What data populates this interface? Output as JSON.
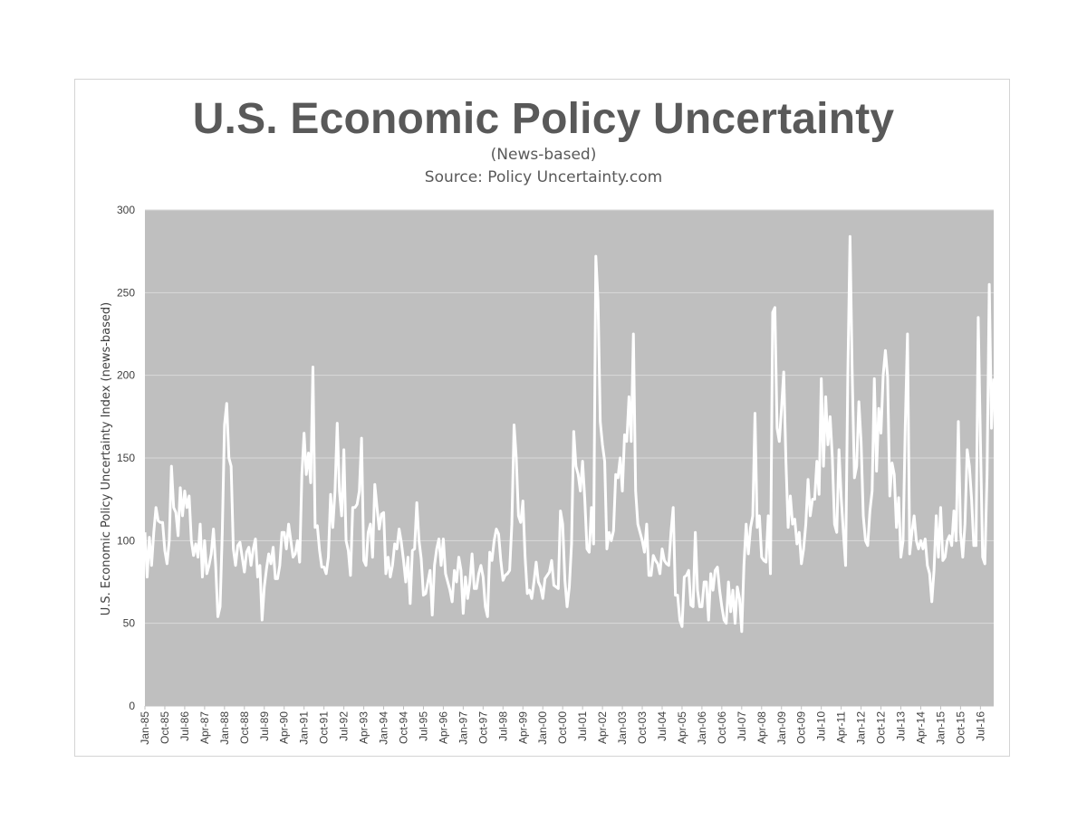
{
  "chart_data": {
    "type": "line",
    "title": "U.S. Economic Policy Uncertainty",
    "subtitle": "(News-based)",
    "source": "Source: Policy Uncertainty.com",
    "ylabel": "U.S. Economic Policy Uncertainty  Index (news-based)",
    "xlabel": "",
    "ylim": [
      0,
      300
    ],
    "y_ticks": [
      0,
      50,
      100,
      150,
      200,
      250,
      300
    ],
    "x_start": "1985-01",
    "grid": true,
    "legend": "none",
    "colors": {
      "plot_bg": "#bfbfbf",
      "line": "#ffffff",
      "grid": "#d9d9d9"
    },
    "x_tick_labels": [
      "Jan-85",
      "Oct-85",
      "Jul-86",
      "Apr-87",
      "Jan-88",
      "Oct-88",
      "Jul-89",
      "Apr-90",
      "Jan-91",
      "Oct-91",
      "Jul-92",
      "Apr-93",
      "Jan-94",
      "Oct-94",
      "Jul-95",
      "Apr-96",
      "Jan-97",
      "Oct-97",
      "Jul-98",
      "Apr-99",
      "Jan-00",
      "Oct-00",
      "Jul-01",
      "Apr-02",
      "Jan-03",
      "Oct-03",
      "Jul-04",
      "Apr-05",
      "Jan-06",
      "Oct-06",
      "Jul-07",
      "Apr-08",
      "Jan-09",
      "Oct-09",
      "Jul-10",
      "Apr-11",
      "Jan-12",
      "Oct-12",
      "Jul-13",
      "Apr-14",
      "Jan-15",
      "Oct-15",
      "Jul-16"
    ],
    "series": [
      {
        "values": [
          105,
          78,
          102,
          85,
          105,
          120,
          112,
          111,
          111,
          94,
          86,
          100,
          145,
          120,
          117,
          103,
          132,
          115,
          130,
          120,
          127,
          100,
          91,
          98,
          90,
          110,
          78,
          100,
          80,
          85,
          92,
          107,
          85,
          54,
          60,
          105,
          170,
          183,
          150,
          145,
          95,
          85,
          97,
          99,
          90,
          81,
          93,
          96,
          85,
          95,
          101,
          78,
          85,
          52,
          72,
          83,
          92,
          86,
          96,
          77,
          77,
          85,
          105,
          105,
          95,
          110,
          100,
          90,
          92,
          100,
          87,
          140,
          165,
          140,
          153,
          135,
          205,
          108,
          109,
          94,
          84,
          84,
          80,
          90,
          128,
          108,
          130,
          171,
          130,
          115,
          155,
          100,
          94,
          79,
          120,
          120,
          122,
          130,
          162,
          88,
          85,
          105,
          110,
          90,
          134,
          120,
          107,
          116,
          117,
          80,
          90,
          78,
          85,
          98,
          95,
          107,
          99,
          88,
          75,
          90,
          62,
          94,
          95,
          123,
          100,
          89,
          67,
          68,
          75,
          82,
          55,
          85,
          95,
          101,
          85,
          101,
          80,
          75,
          70,
          63,
          82,
          75,
          90,
          82,
          56,
          78,
          65,
          75,
          92,
          71,
          71,
          80,
          85,
          78,
          60,
          54,
          93,
          88,
          100,
          107,
          104,
          88,
          76,
          79,
          80,
          82,
          110,
          170,
          150,
          115,
          111,
          124,
          90,
          68,
          70,
          65,
          75,
          87,
          75,
          72,
          65,
          77,
          79,
          81,
          88,
          73,
          72,
          71,
          118,
          110,
          76,
          60,
          72,
          98,
          166,
          145,
          140,
          130,
          148,
          125,
          95,
          93,
          120,
          98,
          272,
          245,
          172,
          158,
          148,
          95,
          105,
          100,
          106,
          140,
          138,
          150,
          130,
          164,
          160,
          187,
          160,
          225,
          130,
          110,
          105,
          100,
          93,
          110,
          79,
          79,
          91,
          88,
          86,
          80,
          95,
          88,
          86,
          85,
          105,
          120,
          67,
          67,
          52,
          48,
          78,
          79,
          82,
          61,
          60,
          105,
          70,
          60,
          60,
          75,
          75,
          52,
          80,
          70,
          82,
          84,
          70,
          60,
          52,
          50,
          75,
          57,
          70,
          50,
          72,
          65,
          45,
          85,
          110,
          92,
          108,
          115,
          177,
          108,
          115,
          90,
          88,
          87,
          115,
          80,
          238,
          241,
          168,
          160,
          180,
          202,
          148,
          108,
          127,
          110,
          113,
          98,
          105,
          86,
          95,
          110,
          137,
          115,
          125,
          125,
          148,
          128,
          198,
          145,
          187,
          158,
          175,
          150,
          110,
          105,
          155,
          126,
          105,
          85,
          200,
          284,
          200,
          138,
          145,
          184,
          160,
          115,
          100,
          97,
          118,
          130,
          198,
          142,
          180,
          165,
          200,
          215,
          199,
          127,
          147,
          140,
          108,
          126,
          90,
          100,
          170,
          225,
          92,
          105,
          115,
          100,
          95,
          100,
          95,
          101,
          85,
          80,
          63,
          82,
          115,
          90,
          120,
          88,
          90,
          100,
          103,
          97,
          118,
          100,
          172,
          105,
          90,
          110,
          155,
          145,
          125,
          97,
          97,
          235,
          160,
          90,
          86,
          140,
          255,
          168,
          198
        ]
      }
    ]
  }
}
